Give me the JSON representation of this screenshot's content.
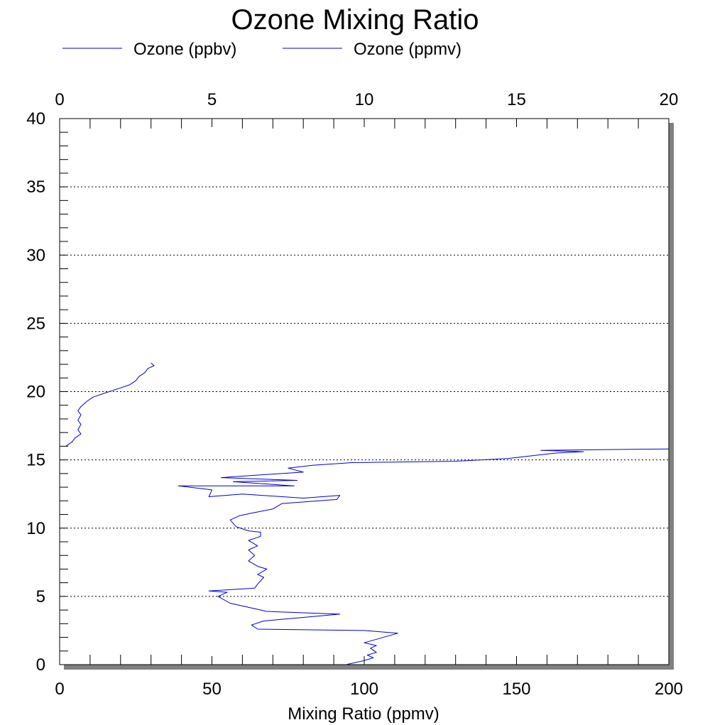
{
  "chart_data": {
    "type": "line",
    "title": "Ozone Mixing Ratio",
    "xlabel": "Mixing Ratio (ppmv)",
    "ylabel": "",
    "xlim": [
      0,
      200
    ],
    "x2lim": [
      0,
      20
    ],
    "ylim": [
      0,
      40
    ],
    "x_ticks": [
      "0",
      "50",
      "100",
      "150",
      "200"
    ],
    "x2_ticks": [
      "0",
      "5",
      "10",
      "15",
      "20"
    ],
    "y_ticks": [
      "0",
      "5",
      "10",
      "15",
      "20",
      "25",
      "30",
      "35",
      "40"
    ],
    "grid": "horizontal dotted",
    "legend_position": "top",
    "series": [
      {
        "name": "Ozone (ppbv)",
        "axis": "bottom",
        "color": "#0000cc",
        "points": [
          [
            94,
            0.0
          ],
          [
            100,
            0.3
          ],
          [
            103,
            0.5
          ],
          [
            101,
            0.7
          ],
          [
            104,
            0.9
          ],
          [
            102,
            1.2
          ],
          [
            104,
            1.4
          ],
          [
            100,
            1.6
          ],
          [
            111,
            2.3
          ],
          [
            100,
            2.5
          ],
          [
            65,
            2.6
          ],
          [
            63,
            2.9
          ],
          [
            67,
            3.2
          ],
          [
            92,
            3.7
          ],
          [
            68,
            3.9
          ],
          [
            56,
            4.5
          ],
          [
            52,
            5.0
          ],
          [
            55,
            5.3
          ],
          [
            49,
            5.4
          ],
          [
            64,
            5.6
          ],
          [
            65,
            5.9
          ],
          [
            67,
            6.4
          ],
          [
            65,
            6.6
          ],
          [
            68,
            7.0
          ],
          [
            65,
            7.2
          ],
          [
            62,
            7.6
          ],
          [
            64,
            8.0
          ],
          [
            62,
            8.4
          ],
          [
            65,
            8.7
          ],
          [
            62,
            9.1
          ],
          [
            66,
            9.4
          ],
          [
            66,
            9.7
          ],
          [
            62,
            9.8
          ],
          [
            58,
            10.1
          ],
          [
            56,
            10.6
          ],
          [
            59,
            10.9
          ],
          [
            63,
            11.1
          ],
          [
            70,
            11.4
          ],
          [
            73,
            11.8
          ],
          [
            91,
            12.1
          ],
          [
            92,
            12.4
          ],
          [
            80,
            12.2
          ],
          [
            60,
            12.5
          ],
          [
            49,
            12.3
          ],
          [
            50,
            12.8
          ],
          [
            39,
            13.1
          ],
          [
            77,
            13.1
          ],
          [
            57,
            13.4
          ],
          [
            78,
            13.5
          ],
          [
            53,
            13.7
          ],
          [
            66,
            13.9
          ],
          [
            80,
            14.1
          ],
          [
            75,
            14.4
          ],
          [
            83,
            14.6
          ],
          [
            96,
            14.8
          ],
          [
            130,
            14.9
          ],
          [
            147,
            15.1
          ],
          [
            163,
            15.5
          ],
          [
            172,
            15.6
          ],
          [
            158,
            15.7
          ],
          [
            200,
            15.8
          ]
        ]
      },
      {
        "name": "Ozone (ppmv)",
        "axis": "top",
        "color": "#0000cc",
        "points": [
          [
            0.2,
            16.0
          ],
          [
            0.4,
            16.3
          ],
          [
            0.5,
            16.6
          ],
          [
            0.7,
            16.9
          ],
          [
            0.6,
            17.2
          ],
          [
            0.7,
            17.6
          ],
          [
            0.6,
            17.9
          ],
          [
            0.7,
            18.3
          ],
          [
            0.6,
            18.6
          ],
          [
            0.7,
            18.9
          ],
          [
            0.9,
            19.3
          ],
          [
            1.1,
            19.6
          ],
          [
            1.5,
            19.9
          ],
          [
            1.9,
            20.2
          ],
          [
            2.3,
            20.5
          ],
          [
            2.5,
            20.8
          ],
          [
            2.6,
            21.1
          ],
          [
            2.8,
            21.4
          ],
          [
            2.9,
            21.7
          ],
          [
            3.1,
            21.9
          ],
          [
            3.0,
            22.1
          ]
        ]
      }
    ]
  }
}
